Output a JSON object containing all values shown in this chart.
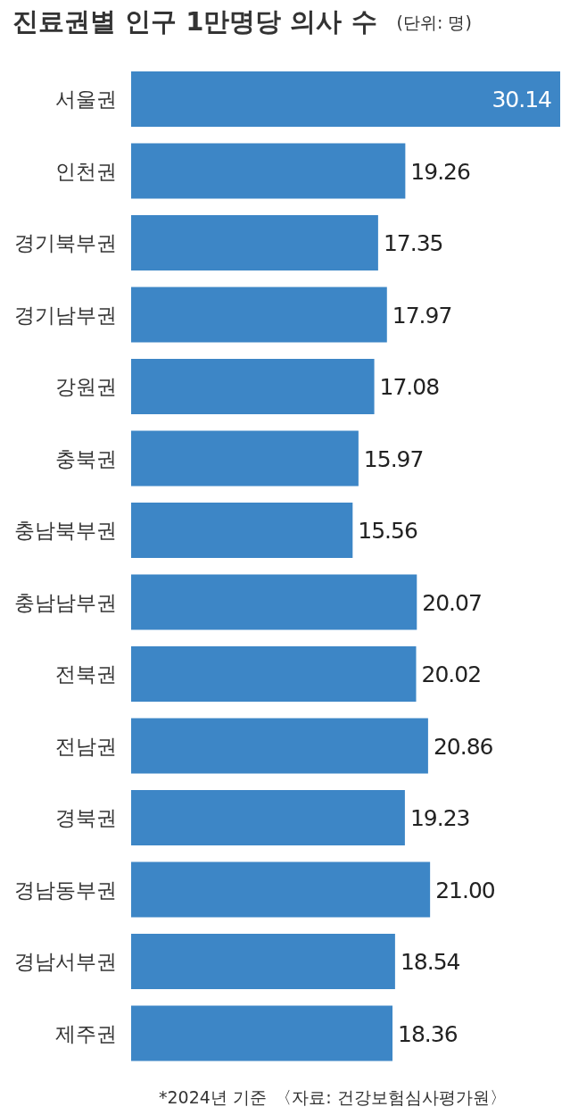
{
  "chart_data": {
    "type": "bar",
    "orientation": "horizontal",
    "title": "진료권별 인구 1만명당 의사 수",
    "subtitle": "(단위: 명)",
    "annotations": [
      "*2024년 기준",
      "〈자료: 건강보험심사평가원〉"
    ],
    "categories": [
      "서울권",
      "인천권",
      "경기북부권",
      "경기남부권",
      "강원권",
      "충북권",
      "충남북부권",
      "충남남부권",
      "전북권",
      "전남권",
      "경북권",
      "경남동부권",
      "경남서부권",
      "제주권"
    ],
    "values": [
      30.14,
      19.26,
      17.35,
      17.97,
      17.08,
      15.97,
      15.56,
      20.07,
      20.02,
      20.86,
      19.23,
      21.0,
      18.54,
      18.36
    ],
    "value_labels": [
      "30.14",
      "19.26",
      "17.35",
      "17.97",
      "17.08",
      "15.97",
      "15.56",
      "20.07",
      "20.02",
      "20.86",
      "19.23",
      "21.00",
      "18.54",
      "18.36"
    ],
    "color": "#3d86c6"
  }
}
